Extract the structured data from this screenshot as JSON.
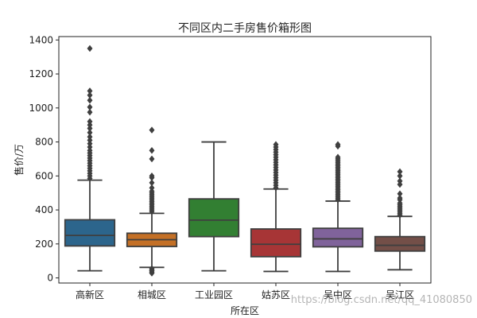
{
  "chart_data": {
    "type": "box",
    "title": "不同区内二手房售价箱形图",
    "xlabel": "所在区",
    "ylabel": "售价/万",
    "ylim": [
      -30,
      1420
    ],
    "yticks": [
      0,
      200,
      400,
      600,
      800,
      1000,
      1200,
      1400
    ],
    "grid": false,
    "categories": [
      "高新区",
      "相城区",
      "工业园区",
      "姑苏区",
      "吴中区",
      "吴江区"
    ],
    "colors": [
      "#3274a1",
      "#e1812c",
      "#3a923a",
      "#c03d3e",
      "#9372b2",
      "#845b53"
    ],
    "boxes": [
      {
        "q1": 188,
        "median": 250,
        "q3": 342,
        "whisker_low": 42,
        "whisker_high": 575,
        "outliers": [
          585,
          600,
          615,
          630,
          645,
          660,
          675,
          690,
          705,
          720,
          735,
          750,
          770,
          790,
          810,
          830,
          855,
          880,
          900,
          920,
          975,
          1005,
          1045,
          1075,
          1100,
          1350
        ]
      },
      {
        "q1": 185,
        "median": 225,
        "q3": 263,
        "whisker_low": 62,
        "whisker_high": 380,
        "outliers": [
          28,
          35,
          42,
          48,
          55,
          390,
          400,
          410,
          420,
          430,
          440,
          450,
          460,
          470,
          480,
          490,
          500,
          510,
          530,
          560,
          590,
          600,
          700,
          750,
          870
        ]
      },
      {
        "q1": 243,
        "median": 340,
        "q3": 465,
        "whisker_low": 42,
        "whisker_high": 800,
        "outliers": []
      },
      {
        "q1": 125,
        "median": 198,
        "q3": 288,
        "whisker_low": 38,
        "whisker_high": 523,
        "outliers": [
          530,
          545,
          560,
          575,
          590,
          605,
          620,
          635,
          650,
          665,
          680,
          695,
          710,
          725,
          740,
          755,
          770,
          785
        ]
      },
      {
        "q1": 183,
        "median": 230,
        "q3": 292,
        "whisker_low": 38,
        "whisker_high": 452,
        "outliers": [
          460,
          470,
          480,
          490,
          500,
          510,
          520,
          530,
          540,
          550,
          560,
          570,
          580,
          590,
          600,
          610,
          620,
          630,
          640,
          650,
          660,
          670,
          680,
          690,
          700,
          710,
          775,
          785
        ]
      },
      {
        "q1": 158,
        "median": 192,
        "q3": 243,
        "whisker_low": 48,
        "whisker_high": 362,
        "outliers": [
          370,
          380,
          390,
          400,
          410,
          420,
          430,
          440,
          460,
          470,
          495,
          550,
          570,
          600,
          625
        ]
      }
    ]
  },
  "watermark": "https://blog.csdn.net/qq_41080850"
}
